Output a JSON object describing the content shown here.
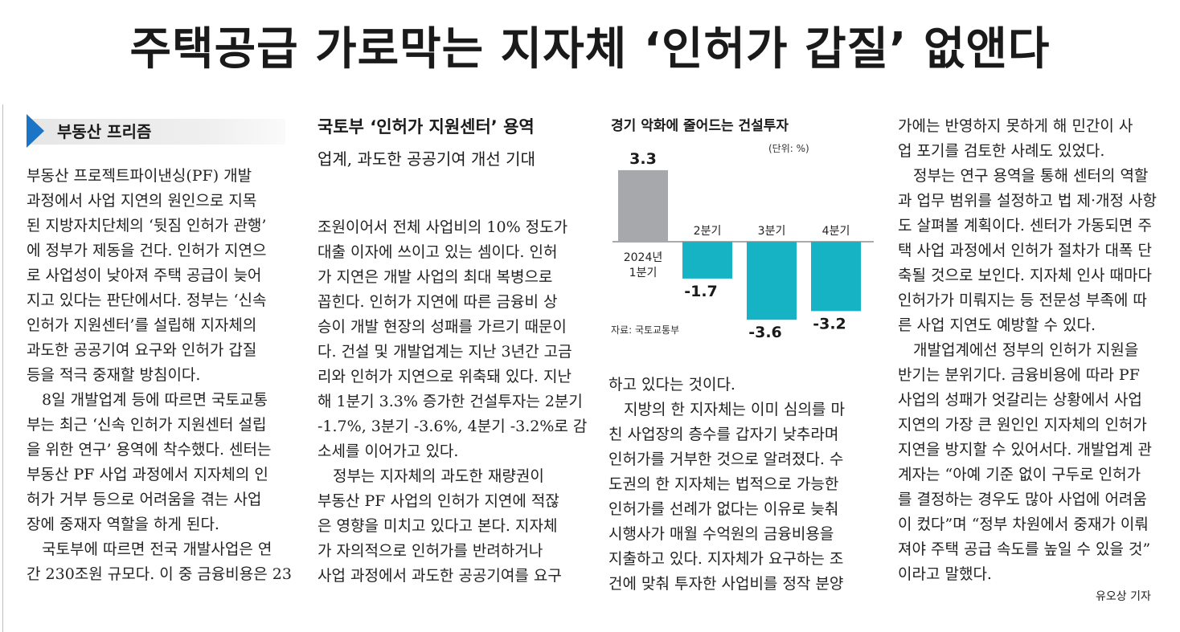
{
  "headline": "주택공급 가로막는 지자체 ‘인허가 갑질’ 없앤다",
  "section_label": "부동산 프리즘",
  "subhead": {
    "line1": "국토부 ‘인허가 지원센터’ 용역",
    "line2": "업계, 과도한 공공기여 개선 기대"
  },
  "chart_title": "경기 악화에 줄어드는 건설투자",
  "chart_unit": "(단위: %)",
  "chart_source": "자료: 국토교통부",
  "chart_data": {
    "type": "bar",
    "title": "경기 악화에 줄어드는 건설투자",
    "xlabel": "",
    "ylabel": "",
    "unit": "(단위: %)",
    "categories": [
      "2024년 1분기",
      "2분기",
      "3분기",
      "4분기"
    ],
    "values": [
      3.3,
      -1.7,
      -3.6,
      -3.2
    ],
    "value_labels": [
      "3.3",
      "-1.7",
      "-3.6",
      "-3.2"
    ],
    "category_lines": [
      [
        "2024년",
        "1분기"
      ],
      [
        "2분기"
      ],
      [
        "3분기"
      ],
      [
        "4분기"
      ]
    ],
    "colors": [
      "#a6a8ab",
      "#16b3c4",
      "#16b3c4",
      "#16b3c4"
    ],
    "ylim": [
      -3.6,
      3.3
    ],
    "grid": false
  },
  "col1": [
    {
      "indent": false,
      "lines": [
        "부동산 프로젝트파이낸싱(PF) 개발",
        "과정에서 사업 지연의 원인으로 지목",
        "된 지방자치단체의 ‘뒷짐 인허가 관행’",
        "에 정부가 제동을 건다. 인허가 지연으",
        "로 사업성이 낮아져 주택 공급이 늦어",
        "지고 있다는 판단에서다. 정부는 ‘신속",
        "인허가 지원센터’를 설립해 지자체의",
        "과도한 공공기여 요구와 인허가 갑질",
        "등을 적극 중재할 방침이다."
      ]
    },
    {
      "indent": true,
      "lines": [
        "8일 개발업계 등에 따르면 국토교통",
        "부는 최근 ‘신속 인허가 지원센터 설립",
        "을 위한 연구’ 용역에 착수했다. 센터는",
        "부동산 PF 사업 과정에서 지자체의 인",
        "허가 거부 등으로 어려움을 겪는 사업",
        "장에 중재자 역할을 하게 된다."
      ]
    },
    {
      "indent": true,
      "lines": [
        "국토부에 따르면 전국 개발사업은 연",
        "간 230조원 규모다. 이 중 금융비용은 23"
      ]
    }
  ],
  "col2": [
    {
      "indent": false,
      "lines": [
        "조원이어서 전체 사업비의 10% 정도가",
        "대출 이자에 쓰이고 있는 셈이다. 인허",
        "가 지연은 개발 사업의 최대 복병으로",
        "꼽힌다. 인허가 지연에 따른 금융비 상",
        "승이 개발 현장의 성패를 가르기 때문이",
        "다. 건설 및 개발업계는 지난 3년간 고금",
        "리와 인허가 지연으로 위축돼 있다. 지난",
        "해 1분기 3.3% 증가한 건설투자는 2분기",
        "-1.7%, 3분기 -3.6%, 4분기 -3.2%로 감",
        "소세를 이어가고 있다."
      ]
    },
    {
      "indent": true,
      "lines": [
        "정부는 지자체의 과도한 재량권이",
        "부동산 PF 사업의 인허가 지연에 적잖",
        "은 영향을 미치고 있다고 본다. 지자체",
        "가 자의적으로 인허가를 반려하거나",
        "사업 과정에서 과도한 공공기여를 요구"
      ]
    }
  ],
  "col3": [
    {
      "indent": false,
      "lines": [
        "하고 있다는 것이다."
      ]
    },
    {
      "indent": true,
      "lines": [
        "지방의 한 지자체는 이미 심의를 마",
        "친 사업장의 층수를 갑자기 낮추라며",
        "인허가를 거부한 것으로 알려졌다. 수",
        "도권의 한 지자체는 법적으로 가능한",
        "인허가를 선례가 없다는 이유로 늦춰",
        "시행사가 매월 수억원의 금융비용을",
        "지출하고 있다. 지자체가 요구하는 조",
        "건에 맞춰 투자한 사업비를 정작 분양"
      ]
    }
  ],
  "col4": [
    {
      "indent": false,
      "lines": [
        "가에는 반영하지 못하게 해 민간이 사",
        "업 포기를 검토한 사례도 있었다."
      ]
    },
    {
      "indent": true,
      "lines": [
        "정부는 연구 용역을 통해 센터의 역할",
        "과 업무 범위를 설정하고 법 제·개정 사항",
        "도 살펴볼 계획이다. 센터가 가동되면 주",
        "택 사업 과정에서 인허가 절차가 대폭 단",
        "축될 것으로 보인다. 지자체 인사 때마다",
        "인허가가 미뤄지는 등 전문성 부족에 따",
        "른 사업 지연도 예방할 수 있다."
      ]
    },
    {
      "indent": true,
      "lines": [
        "개발업계에선 정부의 인허가 지원을",
        "반기는 분위기다. 금융비용에 따라 PF",
        "사업의 성패가 엇갈리는 상황에서 사업",
        "지연의 가장 큰 원인인 지자체의 인허가",
        "지연을 방지할 수 있어서다. 개발업계 관",
        "계자는 “아예 기준 없이 구두로 인허가",
        "를 결정하는 경우도 많아 사업에 어려움",
        "이 컸다”며 “정부 차원에서 중재가 이뤄",
        "져야 주택 공급 속도를 높일 수 있을 것”",
        "이라고 말했다."
      ]
    }
  ],
  "byline": "유오상 기자"
}
